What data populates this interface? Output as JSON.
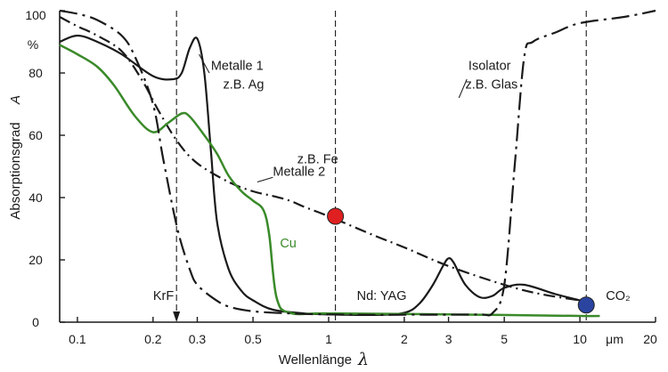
{
  "chart_data": {
    "type": "line",
    "title": "",
    "xlabel": "Wellenlänge",
    "xlabel_symbol": "λ",
    "ylabel": "Absorptionsgrad",
    "ylabel_symbol": "A",
    "x_scale": "log",
    "xlim": [
      0.085,
      20
    ],
    "ylim": [
      0,
      100
    ],
    "grid": false,
    "x_ticks": [
      {
        "value": 0.1,
        "label": "0.1"
      },
      {
        "value": 0.2,
        "label": "0.2"
      },
      {
        "value": 0.3,
        "label": "0.3"
      },
      {
        "value": 0.5,
        "label": "0.5"
      },
      {
        "value": 1,
        "label": "1"
      },
      {
        "value": 2,
        "label": "2"
      },
      {
        "value": 3,
        "label": "3"
      },
      {
        "value": 5,
        "label": "5"
      },
      {
        "value": 10,
        "label": "10"
      },
      {
        "value": 20,
        "label": "20"
      }
    ],
    "x_unit": "μm",
    "y_ticks": [
      {
        "value": 0,
        "label": "0"
      },
      {
        "value": 20,
        "label": "20"
      },
      {
        "value": 40,
        "label": "40"
      },
      {
        "value": 60,
        "label": "60"
      },
      {
        "value": 80,
        "label": "80"
      },
      {
        "value": 100,
        "label": "100"
      }
    ],
    "y_unit": "%",
    "series": [
      {
        "name": "Metalle 1 z.B. Ag",
        "style": "solid",
        "color": "#1a1a1a",
        "x": [
          0.085,
          0.1,
          0.12,
          0.15,
          0.2,
          0.24,
          0.26,
          0.28,
          0.3,
          0.32,
          0.34,
          0.36,
          0.4,
          0.45,
          0.5,
          0.6,
          0.8,
          1,
          1.5,
          2,
          2.3,
          2.6,
          2.85,
          3.0,
          3.15,
          3.5,
          4,
          4.5,
          5,
          6,
          8,
          10
        ],
        "y": [
          90,
          92,
          90,
          86,
          79,
          78,
          80,
          88,
          91,
          80,
          55,
          32,
          17,
          10,
          7,
          4,
          2.8,
          2.5,
          2.3,
          3,
          6,
          12,
          18,
          20.5,
          19,
          12,
          8,
          8.5,
          11,
          12,
          9,
          7
        ]
      },
      {
        "name": "Metalle 2 z.B. Fe",
        "style": "dash-dot",
        "color": "#1a1a1a",
        "x": [
          0.085,
          0.1,
          0.12,
          0.15,
          0.18,
          0.21,
          0.25,
          0.3,
          0.4,
          0.5,
          0.6,
          0.7,
          0.8,
          1,
          1.5,
          2,
          3,
          5,
          7,
          10
        ],
        "y": [
          98,
          95,
          92,
          87,
          78,
          68,
          58,
          51,
          45,
          42,
          40.5,
          39,
          37,
          34,
          28,
          24,
          18,
          12,
          9,
          7
        ]
      },
      {
        "name": "Cu",
        "style": "solid",
        "color": "#3a8a2a",
        "x": [
          0.085,
          0.1,
          0.12,
          0.14,
          0.17,
          0.2,
          0.23,
          0.26,
          0.28,
          0.32,
          0.36,
          0.4,
          0.45,
          0.5,
          0.55,
          0.58,
          0.62,
          0.7,
          1,
          3,
          10,
          12
        ],
        "y": [
          89,
          86,
          82,
          76,
          66,
          61,
          64,
          67,
          66,
          60,
          54,
          47,
          42,
          39,
          36,
          28,
          8,
          3,
          2.8,
          2.5,
          2,
          2
        ]
      },
      {
        "name": "Isolator z.B. Glas",
        "style": "long-dash-dot",
        "color": "#1a1a1a",
        "x": [
          0.085,
          0.1,
          0.12,
          0.15,
          0.17,
          0.2,
          0.22,
          0.25,
          0.28,
          0.3,
          0.35,
          0.4,
          0.5,
          0.7,
          1,
          1.5,
          2,
          3,
          4,
          4.5,
          5,
          5.5,
          6,
          6.5,
          8,
          10,
          15,
          20
        ],
        "y": [
          100,
          99,
          97,
          92,
          85,
          70,
          52,
          30,
          17,
          12,
          7.5,
          5,
          3.5,
          2.8,
          2.5,
          2.3,
          2.4,
          2.4,
          2.5,
          3,
          12,
          50,
          85,
          90,
          93,
          96,
          98,
          100
        ]
      }
    ],
    "vlines": [
      {
        "x": 0.248,
        "label": "KrF",
        "arrow": true
      },
      {
        "x": 1.064,
        "label": "Nd: YAG"
      },
      {
        "x": 10.6,
        "label": "CO₂"
      }
    ],
    "markers": [
      {
        "x": 1.064,
        "y": 34,
        "color": "#e02020"
      },
      {
        "x": 10.6,
        "y": 5.5,
        "color": "#2a44a0"
      }
    ],
    "annotations": [
      {
        "text": "Metalle 1",
        "x": 0.34,
        "y": 81
      },
      {
        "text": "z.B. Ag",
        "x": 0.38,
        "y": 75
      },
      {
        "text": "Isolator",
        "x": 3.6,
        "y": 81
      },
      {
        "text": "z.B. Glas",
        "x": 3.5,
        "y": 75
      },
      {
        "text": "z.B. Fe",
        "x": 0.75,
        "y": 51
      },
      {
        "text": "Metalle 2",
        "x": 0.6,
        "y": 47
      }
    ]
  }
}
